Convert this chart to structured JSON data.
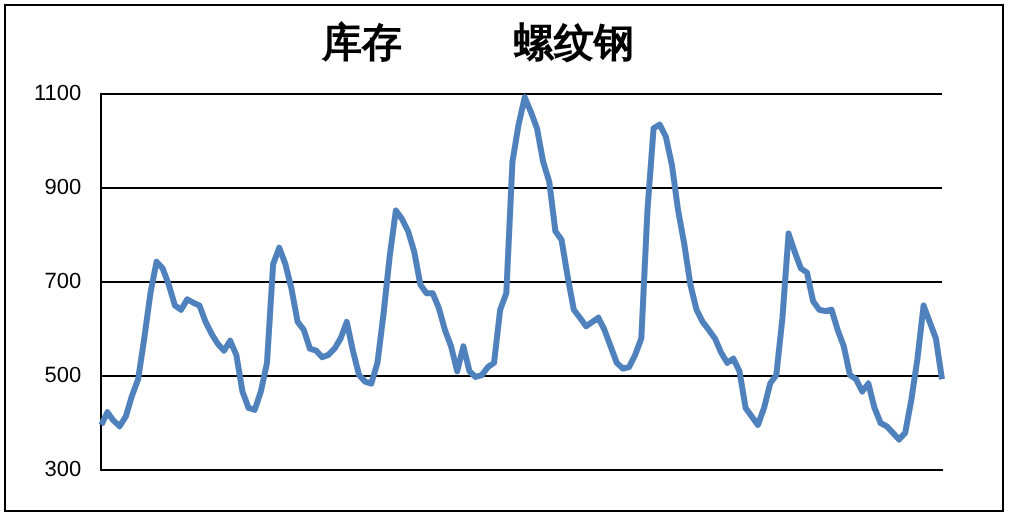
{
  "chart_data": {
    "type": "line",
    "title": "库存        螺纹钢",
    "tick_labels": "y",
    "grid": "y",
    "legend": false,
    "marker": "none",
    "line_style": "solid",
    "categories": [
      null,
      null,
      null,
      null,
      null,
      null,
      null,
      null,
      null,
      null,
      null,
      null,
      null,
      null,
      null,
      null,
      null,
      null,
      null,
      null,
      null,
      null,
      null,
      null,
      null,
      null,
      null,
      null,
      null,
      null,
      null,
      null,
      null,
      null,
      null,
      null,
      null,
      null,
      null,
      null,
      null,
      null,
      null,
      null,
      null,
      null,
      null,
      null,
      null,
      null,
      null,
      null,
      null,
      null,
      null,
      null,
      null,
      null,
      null,
      null,
      null,
      null,
      null,
      null,
      null,
      null,
      null,
      null,
      null,
      null,
      null,
      null,
      null,
      null,
      null,
      null,
      null,
      null,
      null,
      null,
      null,
      null,
      null,
      null,
      null,
      null,
      null,
      null,
      null,
      null,
      null,
      null,
      null,
      null,
      null,
      null,
      null,
      null,
      null,
      null,
      null,
      null,
      null,
      null,
      null,
      null,
      null,
      null,
      null,
      null,
      null,
      null,
      null,
      null,
      null,
      null,
      null,
      null,
      null,
      null,
      null,
      null,
      null,
      null,
      null,
      null,
      null,
      null,
      null,
      null,
      null,
      null,
      null,
      null,
      null,
      null,
      null,
      null
    ],
    "ylim": [
      300,
      1100
    ],
    "yticks": [
      300,
      500,
      700,
      900,
      1100
    ],
    "series": [
      {
        "color": "#4f81bd",
        "values": [
          396,
          423,
          405,
          393,
          414,
          458,
          493,
          580,
          676,
          743,
          729,
          694,
          650,
          641,
          663,
          656,
          650,
          615,
          589,
          568,
          554,
          575,
          545,
          467,
          432,
          428,
          467,
          528,
          738,
          773,
          738,
          685,
          615,
          598,
          558,
          554,
          540,
          545,
          558,
          580,
          615,
          554,
          502,
          488,
          484,
          528,
          633,
          755,
          852,
          834,
          808,
          764,
          694,
          676,
          676,
          645,
          598,
          563,
          510,
          563,
          510,
          498,
          502,
          519,
          528,
          641,
          676,
          956,
          1035,
          1093,
          1062,
          1027,
          956,
          913,
          808,
          790,
          711,
          641,
          624,
          606,
          615,
          624,
          598,
          563,
          528,
          516,
          519,
          545,
          580,
          852,
          1027,
          1035,
          1009,
          948,
          852,
          781,
          694,
          641,
          615,
          598,
          580,
          550,
          528,
          537,
          510,
          432,
          414,
          396,
          432,
          484,
          502,
          624,
          803,
          764,
          729,
          720,
          659,
          641,
          638,
          641,
          598,
          563,
          502,
          493,
          467,
          484,
          432,
          400,
          393,
          379,
          365,
          379,
          449,
          537,
          650,
          615,
          580,
          493
        ]
      }
    ]
  }
}
